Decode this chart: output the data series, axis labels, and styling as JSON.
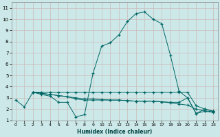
{
  "xlabel": "Humidex (Indice chaleur)",
  "bg_color": "#cce8e8",
  "grid_color": "#ccbbbb",
  "line_color": "#006666",
  "xlim": [
    -0.5,
    23.5
  ],
  "ylim": [
    1,
    11.5
  ],
  "xticks": [
    0,
    1,
    2,
    3,
    4,
    5,
    6,
    7,
    8,
    9,
    10,
    11,
    12,
    13,
    14,
    15,
    16,
    17,
    18,
    19,
    20,
    21,
    22,
    23
  ],
  "yticks": [
    1,
    2,
    3,
    4,
    5,
    6,
    7,
    8,
    9,
    10,
    11
  ],
  "line1_x": [
    0,
    1,
    2,
    3,
    4,
    5,
    6,
    7,
    8,
    9,
    10,
    11,
    12,
    13,
    14,
    15,
    16,
    17,
    18,
    19,
    20,
    21,
    22,
    23
  ],
  "line1_y": [
    2.8,
    2.2,
    3.5,
    3.3,
    3.15,
    2.6,
    2.6,
    1.3,
    1.5,
    5.2,
    7.6,
    7.9,
    8.6,
    9.8,
    10.5,
    10.65,
    10.0,
    9.6,
    6.8,
    3.6,
    3.0,
    1.6,
    2.0,
    1.8
  ],
  "line2_x": [
    2,
    3,
    4,
    5,
    6,
    7,
    8,
    9,
    10,
    11,
    12,
    13,
    14,
    15,
    16,
    17,
    18,
    19,
    20,
    21,
    22,
    23
  ],
  "line2_y": [
    3.5,
    3.5,
    3.5,
    3.5,
    3.5,
    3.5,
    3.5,
    3.5,
    3.5,
    3.5,
    3.5,
    3.5,
    3.5,
    3.5,
    3.5,
    3.5,
    3.5,
    3.5,
    3.5,
    2.3,
    2.0,
    1.8
  ],
  "line3_x": [
    2,
    3,
    4,
    5,
    6,
    7,
    8,
    9,
    10,
    11,
    12,
    13,
    14,
    15,
    16,
    17,
    18,
    19,
    20,
    21,
    22,
    23
  ],
  "line3_y": [
    3.5,
    3.4,
    3.3,
    3.2,
    3.1,
    3.0,
    2.9,
    2.9,
    2.85,
    2.8,
    2.8,
    2.75,
    2.7,
    2.7,
    2.7,
    2.65,
    2.55,
    2.45,
    2.35,
    2.0,
    1.85,
    1.75
  ],
  "line4_x": [
    2,
    3,
    4,
    5,
    6,
    7,
    8,
    9,
    10,
    11,
    12,
    13,
    14,
    15,
    16,
    17,
    18,
    19,
    20,
    21,
    22,
    23
  ],
  "line4_y": [
    3.5,
    3.4,
    3.3,
    3.2,
    3.1,
    2.9,
    2.8,
    2.8,
    2.8,
    2.8,
    2.8,
    2.75,
    2.7,
    2.7,
    2.7,
    2.65,
    2.6,
    2.6,
    3.0,
    1.6,
    1.8,
    1.7
  ]
}
